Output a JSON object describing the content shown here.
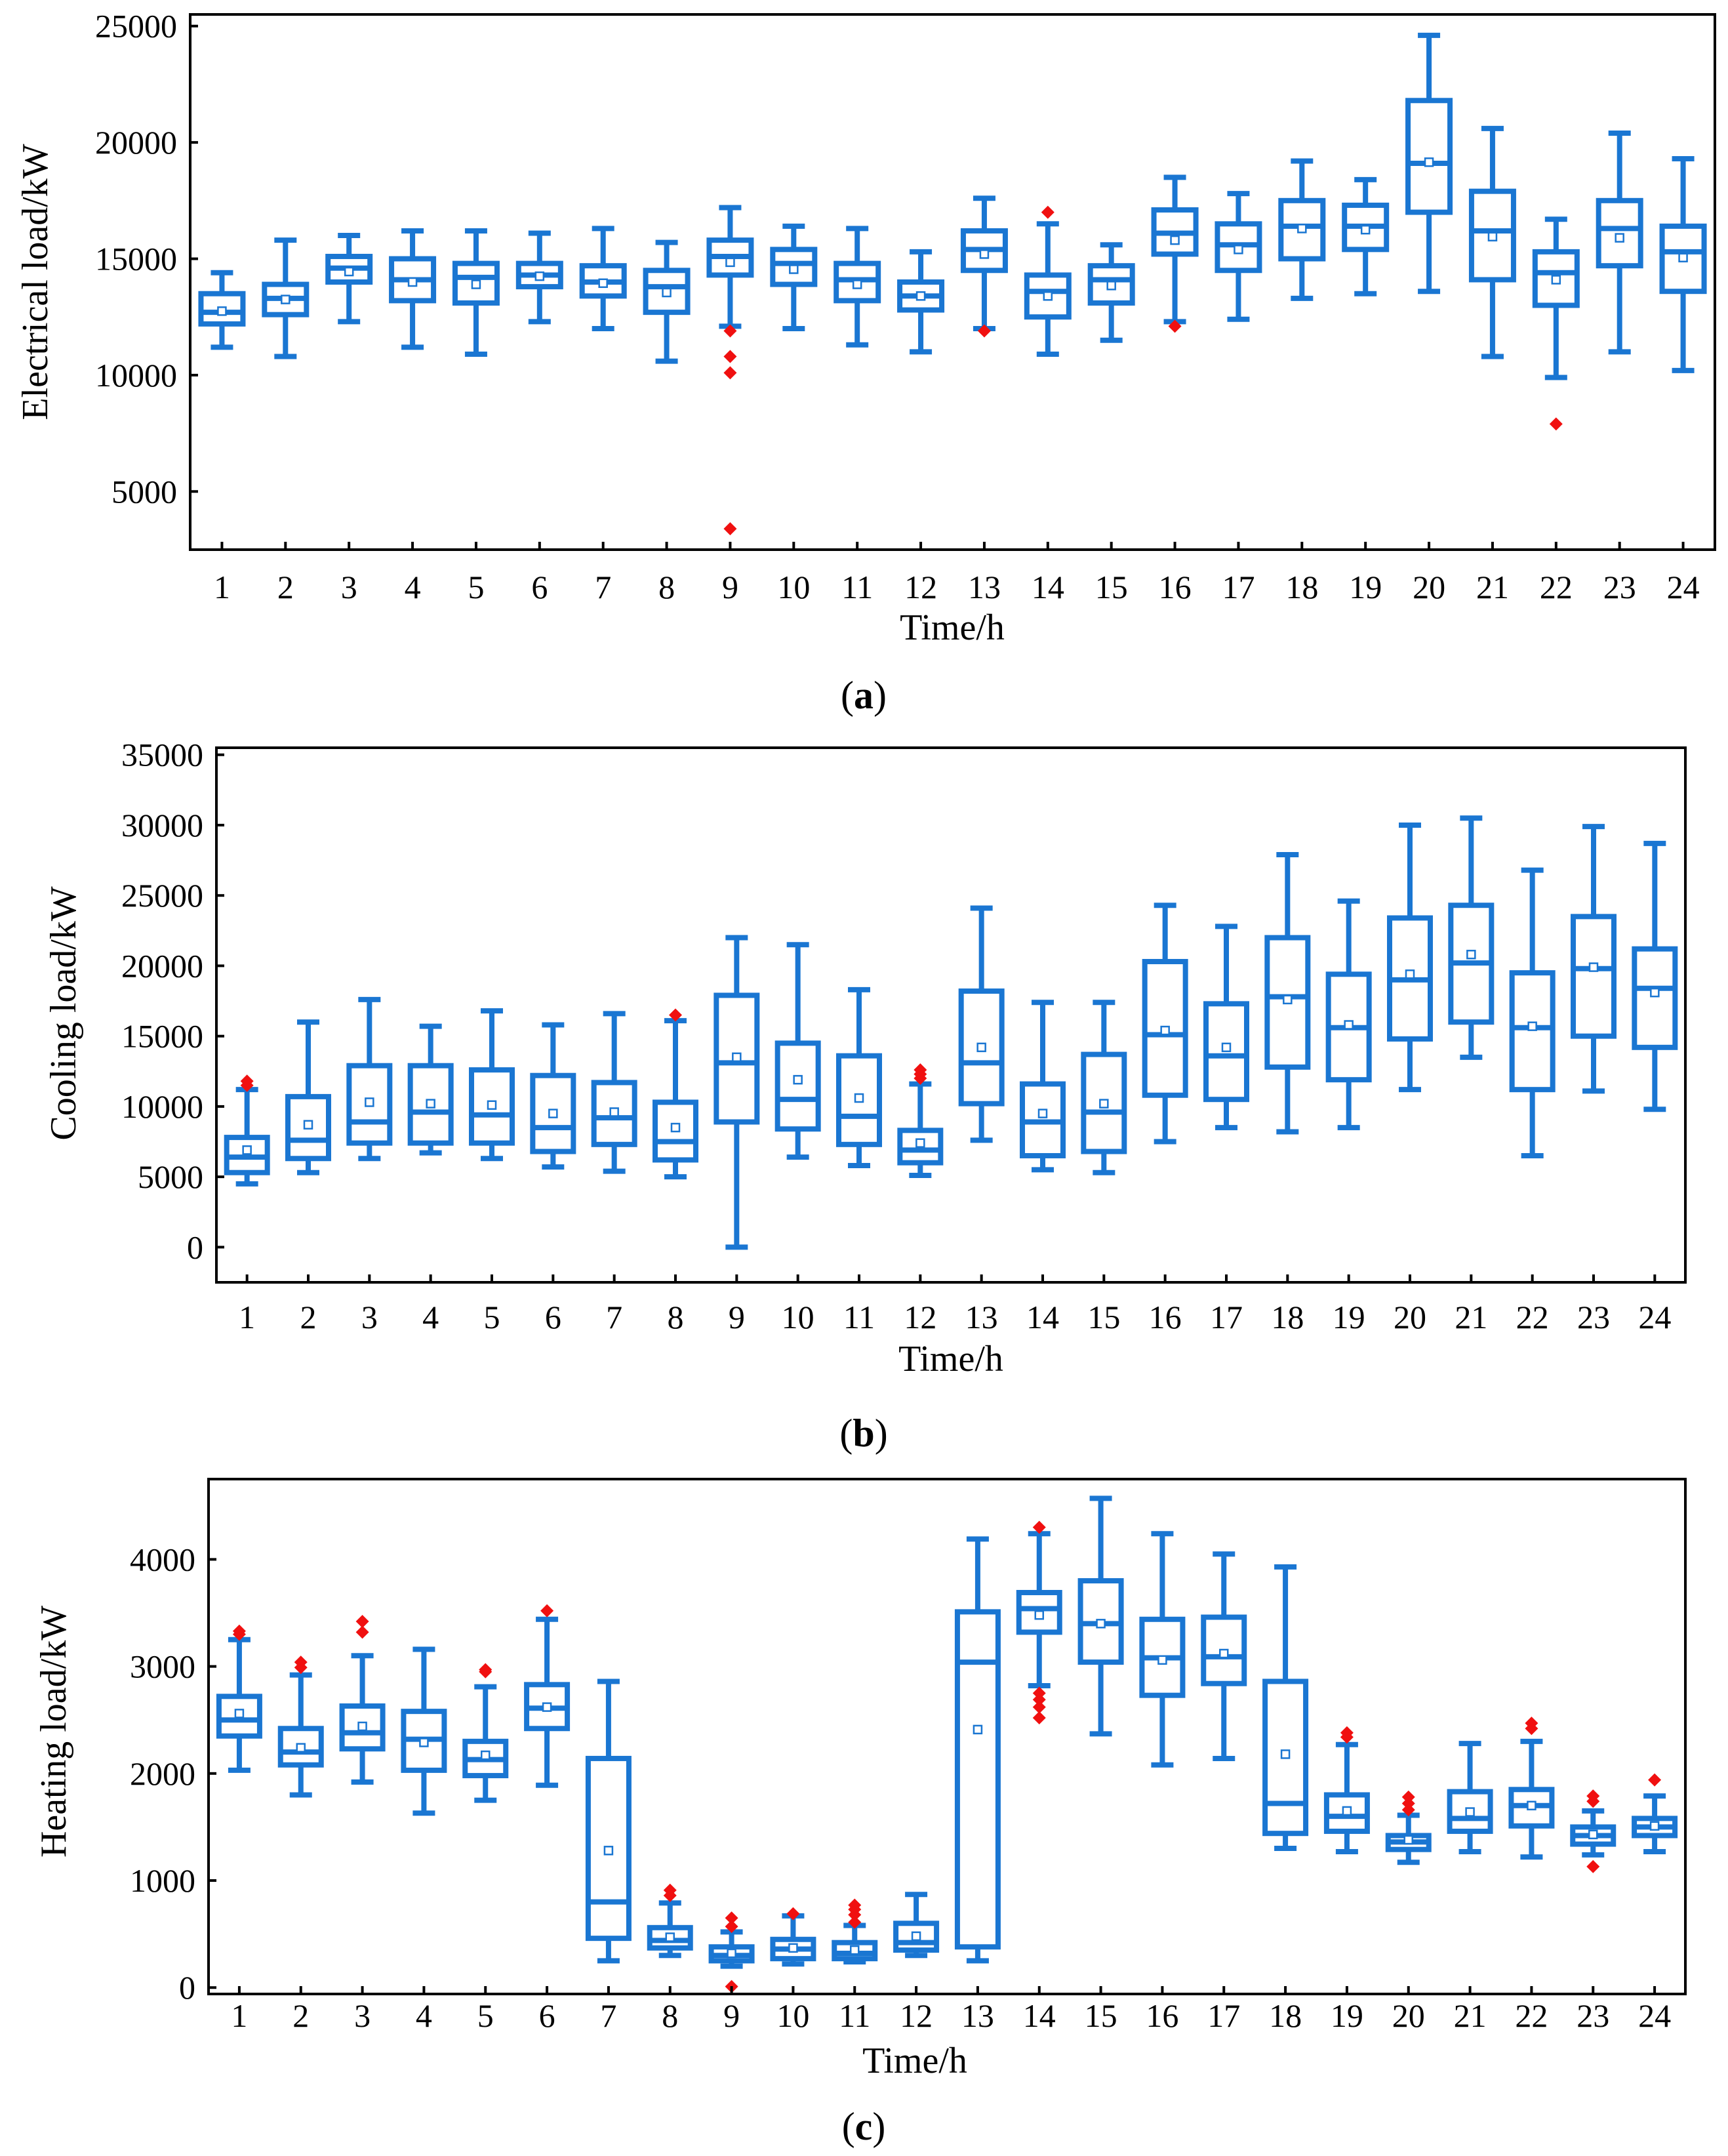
{
  "chart_data": [
    {
      "panel": "a",
      "type": "box",
      "caption": {
        "letter": "a",
        "open": "(",
        "close": ")"
      },
      "xlabel": "Time/h",
      "ylabel": "Electrical load/kW",
      "ylim": [
        2500,
        25500
      ],
      "yticks": [
        5000,
        10000,
        15000,
        20000,
        25000
      ],
      "categories": [
        "1",
        "2",
        "3",
        "4",
        "5",
        "6",
        "7",
        "8",
        "9",
        "10",
        "11",
        "12",
        "13",
        "14",
        "15",
        "16",
        "17",
        "18",
        "19",
        "20",
        "21",
        "22",
        "23",
        "24"
      ],
      "boxes": [
        {
          "min": 11200,
          "q1": 12200,
          "median": 12700,
          "q3": 13500,
          "max": 14400,
          "mean": 12750,
          "outliers": []
        },
        {
          "min": 10800,
          "q1": 12600,
          "median": 13300,
          "q3": 13900,
          "max": 15800,
          "mean": 13250,
          "outliers": []
        },
        {
          "min": 12300,
          "q1": 14000,
          "median": 14600,
          "q3": 15100,
          "max": 16000,
          "mean": 14450,
          "outliers": []
        },
        {
          "min": 11200,
          "q1": 13200,
          "median": 14100,
          "q3": 15000,
          "max": 16200,
          "mean": 14000,
          "outliers": []
        },
        {
          "min": 10900,
          "q1": 13100,
          "median": 14200,
          "q3": 14800,
          "max": 16200,
          "mean": 13900,
          "outliers": []
        },
        {
          "min": 12300,
          "q1": 13800,
          "median": 14300,
          "q3": 14800,
          "max": 16100,
          "mean": 14250,
          "outliers": []
        },
        {
          "min": 12000,
          "q1": 13400,
          "median": 14000,
          "q3": 14700,
          "max": 16300,
          "mean": 13950,
          "outliers": []
        },
        {
          "min": 10600,
          "q1": 12700,
          "median": 13800,
          "q3": 14500,
          "max": 15700,
          "mean": 13550,
          "outliers": []
        },
        {
          "min": 12100,
          "q1": 14300,
          "median": 15100,
          "q3": 15800,
          "max": 17200,
          "mean": 14850,
          "outliers": [
            11900,
            10800,
            10100,
            3400
          ]
        },
        {
          "min": 12000,
          "q1": 13900,
          "median": 14800,
          "q3": 15400,
          "max": 16400,
          "mean": 14550,
          "outliers": []
        },
        {
          "min": 11300,
          "q1": 13200,
          "median": 14100,
          "q3": 14800,
          "max": 16300,
          "mean": 13900,
          "outliers": []
        },
        {
          "min": 11000,
          "q1": 12800,
          "median": 13400,
          "q3": 14000,
          "max": 15300,
          "mean": 13400,
          "outliers": []
        },
        {
          "min": 12000,
          "q1": 14500,
          "median": 15400,
          "q3": 16200,
          "max": 17600,
          "mean": 15200,
          "outliers": [
            11900
          ]
        },
        {
          "min": 10900,
          "q1": 12500,
          "median": 13600,
          "q3": 14300,
          "max": 16500,
          "mean": 13400,
          "outliers": [
            17000
          ]
        },
        {
          "min": 11500,
          "q1": 13100,
          "median": 14100,
          "q3": 14700,
          "max": 15600,
          "mean": 13850,
          "outliers": []
        },
        {
          "min": 12300,
          "q1": 15200,
          "median": 16100,
          "q3": 17100,
          "max": 18500,
          "mean": 15800,
          "outliers": [
            12100
          ]
        },
        {
          "min": 12400,
          "q1": 14500,
          "median": 15600,
          "q3": 16500,
          "max": 17800,
          "mean": 15400,
          "outliers": []
        },
        {
          "min": 13300,
          "q1": 15000,
          "median": 16400,
          "q3": 17500,
          "max": 19200,
          "mean": 16300,
          "outliers": []
        },
        {
          "min": 13500,
          "q1": 15400,
          "median": 16400,
          "q3": 17300,
          "max": 18400,
          "mean": 16250,
          "outliers": []
        },
        {
          "min": 13600,
          "q1": 17000,
          "median": 19100,
          "q3": 21800,
          "max": 24600,
          "mean": 19150,
          "outliers": []
        },
        {
          "min": 10800,
          "q1": 14100,
          "median": 16200,
          "q3": 17900,
          "max": 20600,
          "mean": 15950,
          "outliers": []
        },
        {
          "min": 9900,
          "q1": 13000,
          "median": 14400,
          "q3": 15300,
          "max": 16700,
          "mean": 14100,
          "outliers": [
            7900
          ]
        },
        {
          "min": 11000,
          "q1": 14700,
          "median": 16300,
          "q3": 17500,
          "max": 20400,
          "mean": 15900,
          "outliers": []
        },
        {
          "min": 10200,
          "q1": 13600,
          "median": 15300,
          "q3": 16400,
          "max": 19300,
          "mean": 15050,
          "outliers": []
        }
      ]
    },
    {
      "panel": "b",
      "type": "box",
      "caption": {
        "letter": "b",
        "open": "(",
        "close": ")"
      },
      "xlabel": "Time/h",
      "ylabel": "Cooling load/kW",
      "ylim": [
        -2500,
        35500
      ],
      "yticks": [
        0,
        5000,
        10000,
        15000,
        20000,
        25000,
        30000,
        35000
      ],
      "categories": [
        "1",
        "2",
        "3",
        "4",
        "5",
        "6",
        "7",
        "8",
        "9",
        "10",
        "11",
        "12",
        "13",
        "14",
        "15",
        "16",
        "17",
        "18",
        "19",
        "20",
        "21",
        "22",
        "23",
        "24"
      ],
      "boxes": [
        {
          "min": 4500,
          "q1": 5300,
          "median": 6400,
          "q3": 7800,
          "max": 11200,
          "mean": 6900,
          "outliers": [
            11500,
            11800
          ]
        },
        {
          "min": 5300,
          "q1": 6300,
          "median": 7600,
          "q3": 10700,
          "max": 16000,
          "mean": 8700,
          "outliers": []
        },
        {
          "min": 6300,
          "q1": 7400,
          "median": 8900,
          "q3": 12900,
          "max": 17600,
          "mean": 10300,
          "outliers": []
        },
        {
          "min": 6700,
          "q1": 7400,
          "median": 9600,
          "q3": 12900,
          "max": 15700,
          "mean": 10200,
          "outliers": []
        },
        {
          "min": 6300,
          "q1": 7400,
          "median": 9400,
          "q3": 12600,
          "max": 16800,
          "mean": 10100,
          "outliers": []
        },
        {
          "min": 5700,
          "q1": 6800,
          "median": 8500,
          "q3": 12200,
          "max": 15800,
          "mean": 9500,
          "outliers": []
        },
        {
          "min": 5400,
          "q1": 7300,
          "median": 9200,
          "q3": 11700,
          "max": 16600,
          "mean": 9600,
          "outliers": []
        },
        {
          "min": 5000,
          "q1": 6200,
          "median": 7500,
          "q3": 10300,
          "max": 16100,
          "mean": 8500,
          "outliers": [
            16500
          ]
        },
        {
          "min": 0,
          "q1": 8900,
          "median": 13100,
          "q3": 17900,
          "max": 22000,
          "mean": 13500,
          "outliers": []
        },
        {
          "min": 6400,
          "q1": 8400,
          "median": 10500,
          "q3": 14500,
          "max": 21500,
          "mean": 11900,
          "outliers": []
        },
        {
          "min": 5800,
          "q1": 7300,
          "median": 9300,
          "q3": 13600,
          "max": 18300,
          "mean": 10600,
          "outliers": []
        },
        {
          "min": 5100,
          "q1": 6000,
          "median": 6900,
          "q3": 8300,
          "max": 11600,
          "mean": 7400,
          "outliers": [
            12000,
            12300,
            12600
          ]
        },
        {
          "min": 7600,
          "q1": 10200,
          "median": 13100,
          "q3": 18200,
          "max": 24100,
          "mean": 14200,
          "outliers": []
        },
        {
          "min": 5500,
          "q1": 6500,
          "median": 8900,
          "q3": 11600,
          "max": 17400,
          "mean": 9500,
          "outliers": []
        },
        {
          "min": 5300,
          "q1": 6800,
          "median": 9600,
          "q3": 13700,
          "max": 17400,
          "mean": 10200,
          "outliers": []
        },
        {
          "min": 7500,
          "q1": 10800,
          "median": 15100,
          "q3": 20300,
          "max": 24300,
          "mean": 15400,
          "outliers": []
        },
        {
          "min": 8500,
          "q1": 10500,
          "median": 13600,
          "q3": 17300,
          "max": 22800,
          "mean": 14200,
          "outliers": []
        },
        {
          "min": 8200,
          "q1": 12800,
          "median": 17800,
          "q3": 22000,
          "max": 27900,
          "mean": 17600,
          "outliers": []
        },
        {
          "min": 8500,
          "q1": 11900,
          "median": 15600,
          "q3": 19400,
          "max": 24600,
          "mean": 15800,
          "outliers": []
        },
        {
          "min": 11200,
          "q1": 14800,
          "median": 19000,
          "q3": 23400,
          "max": 30000,
          "mean": 19400,
          "outliers": []
        },
        {
          "min": 13500,
          "q1": 16000,
          "median": 20200,
          "q3": 24300,
          "max": 30500,
          "mean": 20800,
          "outliers": []
        },
        {
          "min": 6500,
          "q1": 11200,
          "median": 15600,
          "q3": 19500,
          "max": 26800,
          "mean": 15700,
          "outliers": []
        },
        {
          "min": 11100,
          "q1": 15000,
          "median": 19800,
          "q3": 23500,
          "max": 29900,
          "mean": 19900,
          "outliers": []
        },
        {
          "min": 9800,
          "q1": 14200,
          "median": 18400,
          "q3": 21200,
          "max": 28700,
          "mean": 18100,
          "outliers": []
        }
      ]
    },
    {
      "panel": "c",
      "type": "box",
      "caption": {
        "letter": "c",
        "open": "(",
        "close": ")"
      },
      "xlabel": "Time/h",
      "ylabel": "Heating load/kW",
      "ylim": [
        -60,
        4750
      ],
      "yticks": [
        0,
        1000,
        2000,
        3000,
        4000
      ],
      "categories": [
        "1",
        "2",
        "3",
        "4",
        "5",
        "6",
        "7",
        "8",
        "9",
        "10",
        "11",
        "12",
        "13",
        "14",
        "15",
        "16",
        "17",
        "18",
        "19",
        "20",
        "21",
        "22",
        "23",
        "24"
      ],
      "boxes": [
        {
          "min": 2030,
          "q1": 2350,
          "median": 2500,
          "q3": 2720,
          "max": 3250,
          "mean": 2560,
          "outliers": [
            3300,
            3330
          ]
        },
        {
          "min": 1800,
          "q1": 2080,
          "median": 2200,
          "q3": 2420,
          "max": 2920,
          "mean": 2240,
          "outliers": [
            2990,
            3040
          ]
        },
        {
          "min": 1920,
          "q1": 2230,
          "median": 2380,
          "q3": 2630,
          "max": 3100,
          "mean": 2440,
          "outliers": [
            3320,
            3420
          ]
        },
        {
          "min": 1630,
          "q1": 2030,
          "median": 2320,
          "q3": 2580,
          "max": 3160,
          "mean": 2290,
          "outliers": []
        },
        {
          "min": 1750,
          "q1": 1980,
          "median": 2130,
          "q3": 2300,
          "max": 2810,
          "mean": 2170,
          "outliers": [
            2950,
            2970
          ]
        },
        {
          "min": 1890,
          "q1": 2420,
          "median": 2610,
          "q3": 2830,
          "max": 3440,
          "mean": 2620,
          "outliers": [
            3520
          ]
        },
        {
          "min": 250,
          "q1": 460,
          "median": 800,
          "q3": 2140,
          "max": 2860,
          "mean": 1280,
          "outliers": []
        },
        {
          "min": 300,
          "q1": 370,
          "median": 440,
          "q3": 560,
          "max": 790,
          "mean": 470,
          "outliers": [
            860,
            910
          ]
        },
        {
          "min": 200,
          "q1": 250,
          "median": 300,
          "q3": 380,
          "max": 520,
          "mean": 320,
          "outliers": [
            570,
            650,
            10
          ]
        },
        {
          "min": 220,
          "q1": 270,
          "median": 360,
          "q3": 450,
          "max": 670,
          "mean": 370,
          "outliers": [
            690
          ]
        },
        {
          "min": 240,
          "q1": 270,
          "median": 320,
          "q3": 420,
          "max": 580,
          "mean": 350,
          "outliers": [
            610,
            680,
            730,
            770
          ]
        },
        {
          "min": 300,
          "q1": 350,
          "median": 420,
          "q3": 600,
          "max": 870,
          "mean": 480,
          "outliers": []
        },
        {
          "min": 250,
          "q1": 380,
          "median": 3040,
          "q3": 3510,
          "max": 4190,
          "mean": 2410,
          "outliers": []
        },
        {
          "min": 2820,
          "q1": 3320,
          "median": 3540,
          "q3": 3690,
          "max": 4240,
          "mean": 3480,
          "outliers": [
            4300,
            2750,
            2690,
            2620,
            2520
          ]
        },
        {
          "min": 2370,
          "q1": 3040,
          "median": 3400,
          "q3": 3800,
          "max": 4570,
          "mean": 3400,
          "outliers": []
        },
        {
          "min": 2080,
          "q1": 2730,
          "median": 3080,
          "q3": 3440,
          "max": 4240,
          "mean": 3060,
          "outliers": []
        },
        {
          "min": 2140,
          "q1": 2840,
          "median": 3090,
          "q3": 3460,
          "max": 4050,
          "mean": 3120,
          "outliers": []
        },
        {
          "min": 1300,
          "q1": 1440,
          "median": 1720,
          "q3": 2860,
          "max": 3930,
          "mean": 2180,
          "outliers": []
        },
        {
          "min": 1270,
          "q1": 1460,
          "median": 1600,
          "q3": 1800,
          "max": 2270,
          "mean": 1650,
          "outliers": [
            2340,
            2380
          ]
        },
        {
          "min": 1170,
          "q1": 1290,
          "median": 1360,
          "q3": 1420,
          "max": 1610,
          "mean": 1380,
          "outliers": [
            1660,
            1720,
            1780
          ]
        },
        {
          "min": 1270,
          "q1": 1460,
          "median": 1580,
          "q3": 1830,
          "max": 2280,
          "mean": 1640,
          "outliers": []
        },
        {
          "min": 1220,
          "q1": 1510,
          "median": 1700,
          "q3": 1850,
          "max": 2300,
          "mean": 1700,
          "outliers": [
            2420,
            2470
          ]
        },
        {
          "min": 1240,
          "q1": 1340,
          "median": 1420,
          "q3": 1500,
          "max": 1650,
          "mean": 1430,
          "outliers": [
            1740,
            1790,
            1130
          ]
        },
        {
          "min": 1270,
          "q1": 1420,
          "median": 1500,
          "q3": 1580,
          "max": 1790,
          "mean": 1510,
          "outliers": [
            1940
          ]
        }
      ]
    }
  ]
}
